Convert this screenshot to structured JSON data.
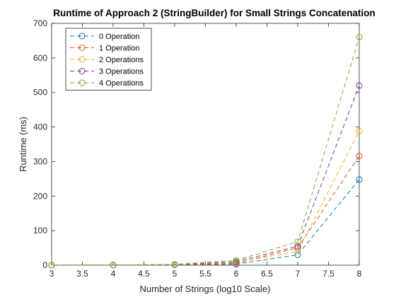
{
  "chart_data": {
    "type": "line",
    "title": "Runtime of Approach 2 (StringBuilder) for Small Strings Concatenation",
    "xlabel": "Number of Strings (log10 Scale)",
    "ylabel": "Runtime (ms)",
    "xlim": [
      3,
      8
    ],
    "ylim": [
      0,
      700
    ],
    "xticks": [
      "3",
      "3.5",
      "4",
      "4.5",
      "5",
      "5.5",
      "6",
      "6.5",
      "7",
      "7.5",
      "8"
    ],
    "yticks": [
      "0",
      "100",
      "200",
      "300",
      "400",
      "500",
      "600",
      "700"
    ],
    "grid": false,
    "legend_position": "top-left",
    "x": [
      3,
      4,
      5,
      6,
      7,
      8
    ],
    "series": [
      {
        "name": "0 Operation",
        "color": "#0072BD",
        "values": [
          0.1,
          0.2,
          1,
          3,
          30,
          248
        ]
      },
      {
        "name": "1 Operation",
        "color": "#D95319",
        "values": [
          0.1,
          0.2,
          1,
          5,
          50,
          316
        ]
      },
      {
        "name": "2 Operations",
        "color": "#EDB120",
        "values": [
          0.1,
          0.3,
          1.5,
          8,
          40,
          388
        ]
      },
      {
        "name": "3 Operations",
        "color": "#7E2F8E",
        "values": [
          0.1,
          0.3,
          2,
          10,
          55,
          520
        ]
      },
      {
        "name": "4 Operations",
        "color": "#77AC30",
        "values": [
          0.2,
          0.4,
          2.5,
          14,
          68,
          660
        ]
      }
    ]
  }
}
